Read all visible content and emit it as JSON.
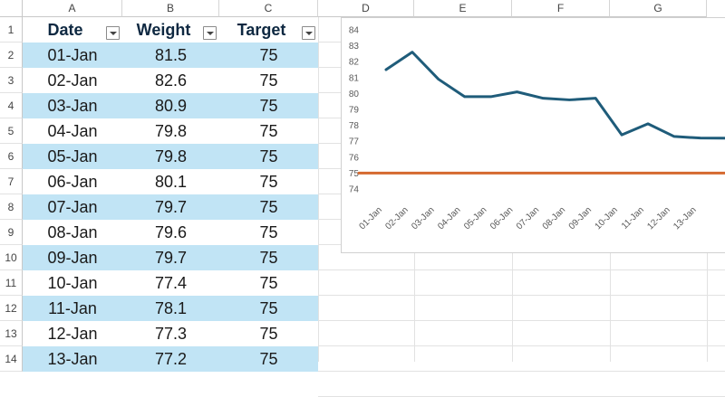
{
  "columns": [
    "A",
    "B",
    "C",
    "D",
    "E",
    "F",
    "G"
  ],
  "rows": [
    "1",
    "2",
    "3",
    "4",
    "5",
    "6",
    "7",
    "8",
    "9",
    "10",
    "11",
    "12",
    "13",
    "14"
  ],
  "table": {
    "headers": [
      "Date",
      "Weight",
      "Target"
    ],
    "rows": [
      [
        "01-Jan",
        "81.5",
        "75"
      ],
      [
        "02-Jan",
        "82.6",
        "75"
      ],
      [
        "03-Jan",
        "80.9",
        "75"
      ],
      [
        "04-Jan",
        "79.8",
        "75"
      ],
      [
        "05-Jan",
        "79.8",
        "75"
      ],
      [
        "06-Jan",
        "80.1",
        "75"
      ],
      [
        "07-Jan",
        "79.7",
        "75"
      ],
      [
        "08-Jan",
        "79.6",
        "75"
      ],
      [
        "09-Jan",
        "79.7",
        "75"
      ],
      [
        "10-Jan",
        "77.4",
        "75"
      ],
      [
        "11-Jan",
        "78.1",
        "75"
      ],
      [
        "12-Jan",
        "77.3",
        "75"
      ],
      [
        "13-Jan",
        "77.2",
        "75"
      ]
    ]
  },
  "colors": {
    "band": "#c1e4f5",
    "weight_line": "#1f5c7a",
    "target_line": "#d5692f"
  },
  "chart_data": {
    "type": "line",
    "categories": [
      "01-Jan",
      "02-Jan",
      "03-Jan",
      "04-Jan",
      "05-Jan",
      "06-Jan",
      "07-Jan",
      "08-Jan",
      "09-Jan",
      "10-Jan",
      "11-Jan",
      "12-Jan",
      "13-Jan"
    ],
    "series": [
      {
        "values": [
          81.5,
          82.6,
          80.9,
          79.8,
          79.8,
          80.1,
          79.7,
          79.6,
          79.7,
          77.4,
          78.1,
          77.3,
          77.2
        ]
      },
      {
        "values": [
          75,
          75,
          75,
          75,
          75,
          75,
          75,
          75,
          75,
          75,
          75,
          75,
          75
        ]
      }
    ],
    "ylim": [
      74,
      84
    ],
    "yticks": [
      "74",
      "75",
      "76",
      "77",
      "78",
      "79",
      "80",
      "81",
      "82",
      "83",
      "84"
    ],
    "grid": false,
    "legend": "none"
  }
}
